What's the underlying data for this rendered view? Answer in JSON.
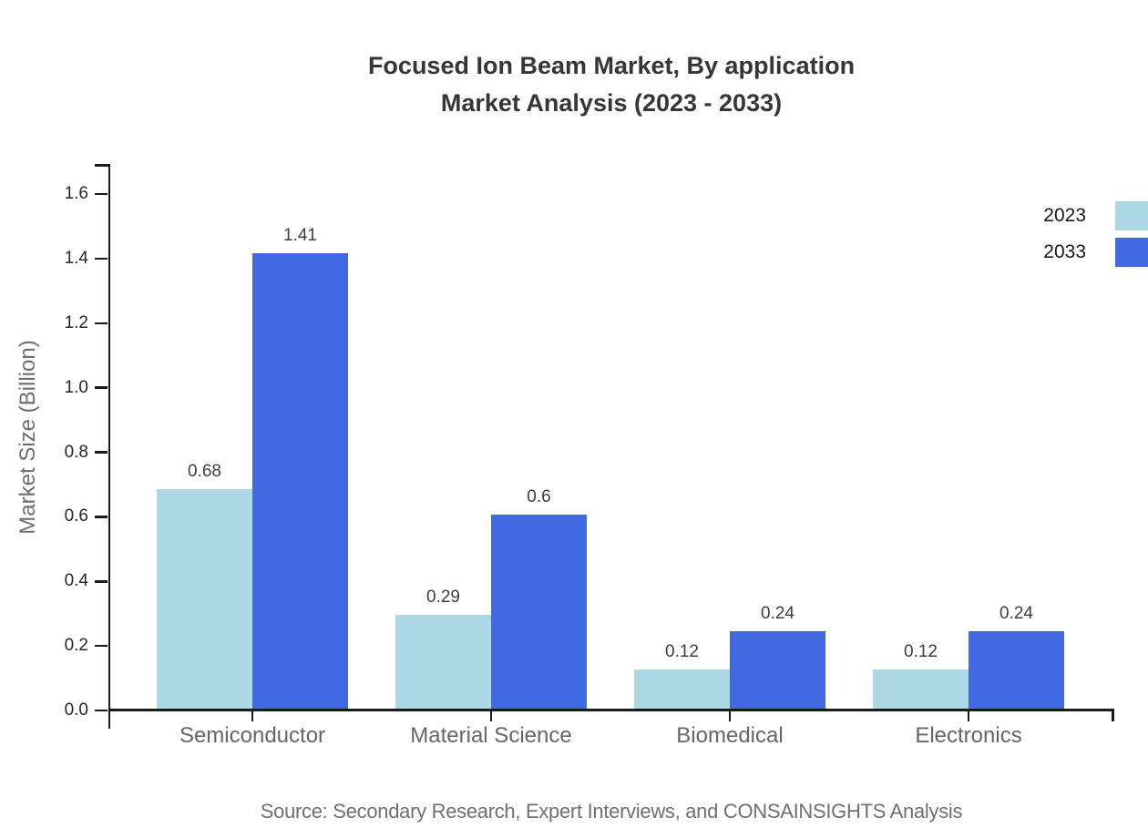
{
  "header": {
    "line1": "Focused Ion Beam Market, By application",
    "line2": "Market Analysis (2023 - 2033)"
  },
  "chart_data": {
    "type": "bar",
    "title": "Focused Ion Beam Market, By application Market Analysis (2023 - 2033)",
    "categories": [
      "Semiconductor",
      "Material Science",
      "Biomedical",
      "Electronics"
    ],
    "series": [
      {
        "name": "2023",
        "color": "#ADD8E6",
        "values": [
          0.68,
          0.29,
          0.12,
          0.12
        ]
      },
      {
        "name": "2033",
        "color": "#4169E1",
        "values": [
          1.41,
          0.6,
          0.24,
          0.24
        ]
      }
    ],
    "xlabel": "",
    "ylabel": "Market Size (Billion)",
    "ylim": [
      0,
      1.6
    ],
    "ytick_step": 0.2,
    "ytick_labels": [
      "0.0",
      "0.2",
      "0.4",
      "0.6",
      "0.8",
      "1.0",
      "1.2",
      "1.4",
      "1.6"
    ],
    "bar_value_labels": [
      "0.68",
      "1.41",
      "0.29",
      "0.6",
      "0.12",
      "0.24"
    ],
    "grid": false,
    "legend_position": "top-right",
    "axis_color": "#1a1a1a"
  },
  "footer": {
    "source": "Source: Secondary Research, Expert Interviews, and CONSAINSIGHTS Analysis"
  }
}
